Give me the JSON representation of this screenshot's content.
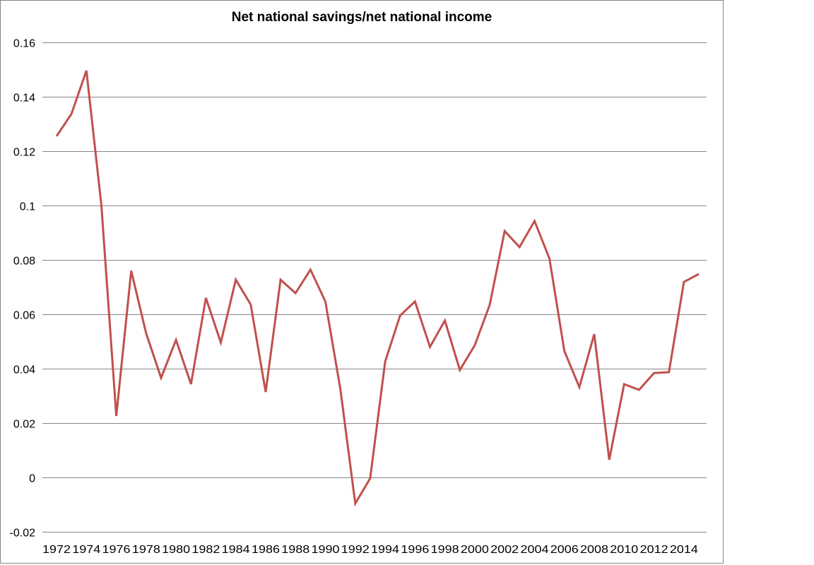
{
  "chart_data": {
    "type": "line",
    "title": "Net national savings/net national income",
    "xlabel": "",
    "ylabel": "",
    "ylim": [
      -0.02,
      0.16
    ],
    "yticks": [
      -0.02,
      0,
      0.02,
      0.04,
      0.06,
      0.08,
      0.1,
      0.12,
      0.14,
      0.16
    ],
    "ytick_labels": [
      "-0.02",
      "0",
      "0.02",
      "0.04",
      "0.06",
      "0.08",
      "0.1",
      "0.12",
      "0.14",
      "0.16"
    ],
    "xtick_labels": [
      "1972",
      "1974",
      "1976",
      "1978",
      "1980",
      "1982",
      "1984",
      "1986",
      "1988",
      "1990",
      "1992",
      "1994",
      "1996",
      "1998",
      "2000",
      "2002",
      "2004",
      "2006",
      "2008",
      "2010",
      "2012",
      "2014"
    ],
    "grid": true,
    "legend": null,
    "x": [
      1972,
      1973,
      1974,
      1975,
      1976,
      1977,
      1978,
      1979,
      1980,
      1981,
      1982,
      1983,
      1984,
      1985,
      1986,
      1987,
      1988,
      1989,
      1990,
      1991,
      1992,
      1993,
      1994,
      1995,
      1996,
      1997,
      1998,
      1999,
      2000,
      2001,
      2002,
      2003,
      2004,
      2005,
      2006,
      2007,
      2008,
      2009,
      2010,
      2011,
      2012,
      2013,
      2014,
      2015
    ],
    "series": [
      {
        "name": "Net national savings/net national income",
        "color": "#C0504D",
        "values": [
          0.1255,
          0.1337,
          0.1496,
          0.1003,
          0.0226,
          0.076,
          0.053,
          0.0366,
          0.0506,
          0.0343,
          0.066,
          0.0496,
          0.0727,
          0.0636,
          0.0314,
          0.0727,
          0.0678,
          0.0764,
          0.0647,
          0.0325,
          -0.0096,
          -0.0003,
          0.0426,
          0.0595,
          0.0647,
          0.048,
          0.0577,
          0.0395,
          0.0486,
          0.0634,
          0.0906,
          0.0847,
          0.0943,
          0.0805,
          0.0465,
          0.0332,
          0.0527,
          0.0065,
          0.0343,
          0.0322,
          0.0384,
          0.0387,
          0.0719,
          0.0748
        ]
      }
    ]
  },
  "colors": {
    "line": "#C0504D",
    "grid": "#868686",
    "frame": "#868686",
    "text": "#000000"
  }
}
